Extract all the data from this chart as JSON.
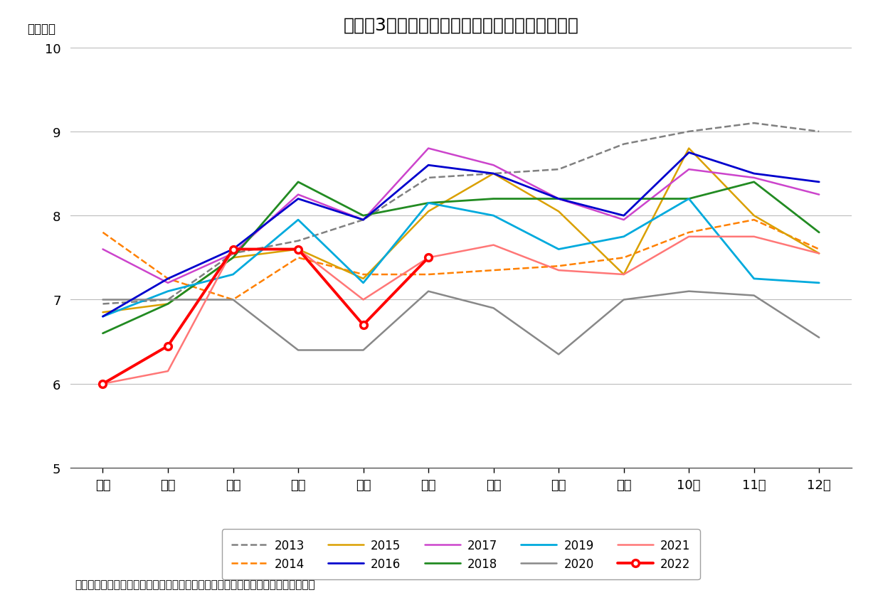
{
  "title": "図表－3　新設住宅着工戸数（全国、暦年比較）",
  "ylabel": "（万戸）",
  "source_note": "（出所）国土交通省「建築着工統計調査報告書」を基にニッセイ基礎研究所が作成",
  "months": [
    "１月",
    "２月",
    "３月",
    "４月",
    "５月",
    "６月",
    "７月",
    "８月",
    "９月",
    "10月",
    "11月",
    "12月"
  ],
  "ylim": [
    5,
    10
  ],
  "yticks": [
    5,
    6,
    7,
    8,
    9,
    10
  ],
  "series": {
    "2013": {
      "values": [
        6.95,
        7.0,
        7.55,
        7.7,
        7.95,
        8.45,
        8.5,
        8.55,
        8.85,
        9.0,
        9.1,
        9.0
      ],
      "color": "#808080",
      "linestyle": "dashed",
      "linewidth": 1.8,
      "marker": null,
      "zorder": 2
    },
    "2014": {
      "values": [
        7.8,
        7.25,
        7.0,
        7.5,
        7.3,
        7.3,
        7.35,
        7.4,
        7.5,
        7.8,
        7.95,
        7.6
      ],
      "color": "#FF8000",
      "linestyle": "dashed",
      "linewidth": 1.8,
      "marker": null,
      "zorder": 2
    },
    "2015": {
      "values": [
        6.85,
        6.95,
        7.5,
        7.6,
        7.25,
        8.05,
        8.5,
        8.05,
        7.3,
        8.8,
        8.0,
        7.55
      ],
      "color": "#DAA000",
      "linestyle": "solid",
      "linewidth": 1.8,
      "marker": null,
      "zorder": 2
    },
    "2016": {
      "values": [
        6.8,
        7.25,
        7.6,
        8.2,
        7.95,
        8.6,
        8.5,
        8.2,
        8.0,
        8.75,
        8.5,
        8.4
      ],
      "color": "#0000CD",
      "linestyle": "solid",
      "linewidth": 2.0,
      "marker": null,
      "zorder": 3
    },
    "2017": {
      "values": [
        7.6,
        7.2,
        7.55,
        8.25,
        7.95,
        8.8,
        8.6,
        8.2,
        7.95,
        8.55,
        8.45,
        8.25
      ],
      "color": "#CC44CC",
      "linestyle": "solid",
      "linewidth": 1.8,
      "marker": null,
      "zorder": 2
    },
    "2018": {
      "values": [
        6.6,
        6.95,
        7.5,
        8.4,
        8.0,
        8.15,
        8.2,
        8.2,
        8.2,
        8.2,
        8.4,
        7.8
      ],
      "color": "#228B22",
      "linestyle": "solid",
      "linewidth": 2.0,
      "marker": null,
      "zorder": 2
    },
    "2019": {
      "values": [
        6.8,
        7.1,
        7.3,
        7.95,
        7.2,
        8.15,
        8.0,
        7.6,
        7.75,
        8.2,
        7.25,
        7.2
      ],
      "color": "#00AADD",
      "linestyle": "solid",
      "linewidth": 2.0,
      "marker": null,
      "zorder": 2
    },
    "2020": {
      "values": [
        7.0,
        7.0,
        7.0,
        6.4,
        6.4,
        7.1,
        6.9,
        6.35,
        7.0,
        7.1,
        7.05,
        6.55
      ],
      "color": "#888888",
      "linestyle": "solid",
      "linewidth": 1.8,
      "marker": null,
      "zorder": 2
    },
    "2021": {
      "values": [
        6.0,
        6.15,
        7.6,
        7.6,
        7.0,
        7.5,
        7.65,
        7.35,
        7.3,
        7.75,
        7.75,
        7.55
      ],
      "color": "#FF7777",
      "linestyle": "solid",
      "linewidth": 1.8,
      "marker": null,
      "zorder": 2
    },
    "2022": {
      "values": [
        6.0,
        6.45,
        7.6,
        7.6,
        6.7,
        7.5,
        null,
        null,
        null,
        null,
        null,
        null
      ],
      "color": "#FF0000",
      "linestyle": "solid",
      "linewidth": 2.8,
      "marker": "o",
      "markersize": 7,
      "zorder": 4
    }
  },
  "legend_order": [
    "2013",
    "2014",
    "2015",
    "2016",
    "2017",
    "2018",
    "2019",
    "2020",
    "2021",
    "2022"
  ],
  "background_color": "#ffffff",
  "grid_color": "#bbbbbb",
  "title_fontsize": 18,
  "label_fontsize": 12,
  "tick_fontsize": 13,
  "note_fontsize": 11
}
